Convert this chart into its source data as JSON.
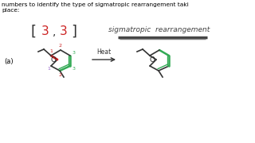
{
  "bg_color": "#ffffff",
  "top_text_line1": "numbers to identify the type of sigmatropic rearrangement taki",
  "top_text_line2": "place:",
  "label_a": "(a)",
  "heat_label": "Heat",
  "text_color": "#000000",
  "red_color": "#cc2222",
  "green_color": "#33aa55",
  "purple_color": "#9966cc",
  "bracket_number_color": "#cc2222",
  "sigmatropic_text": "sigmatropic  rearrangement"
}
